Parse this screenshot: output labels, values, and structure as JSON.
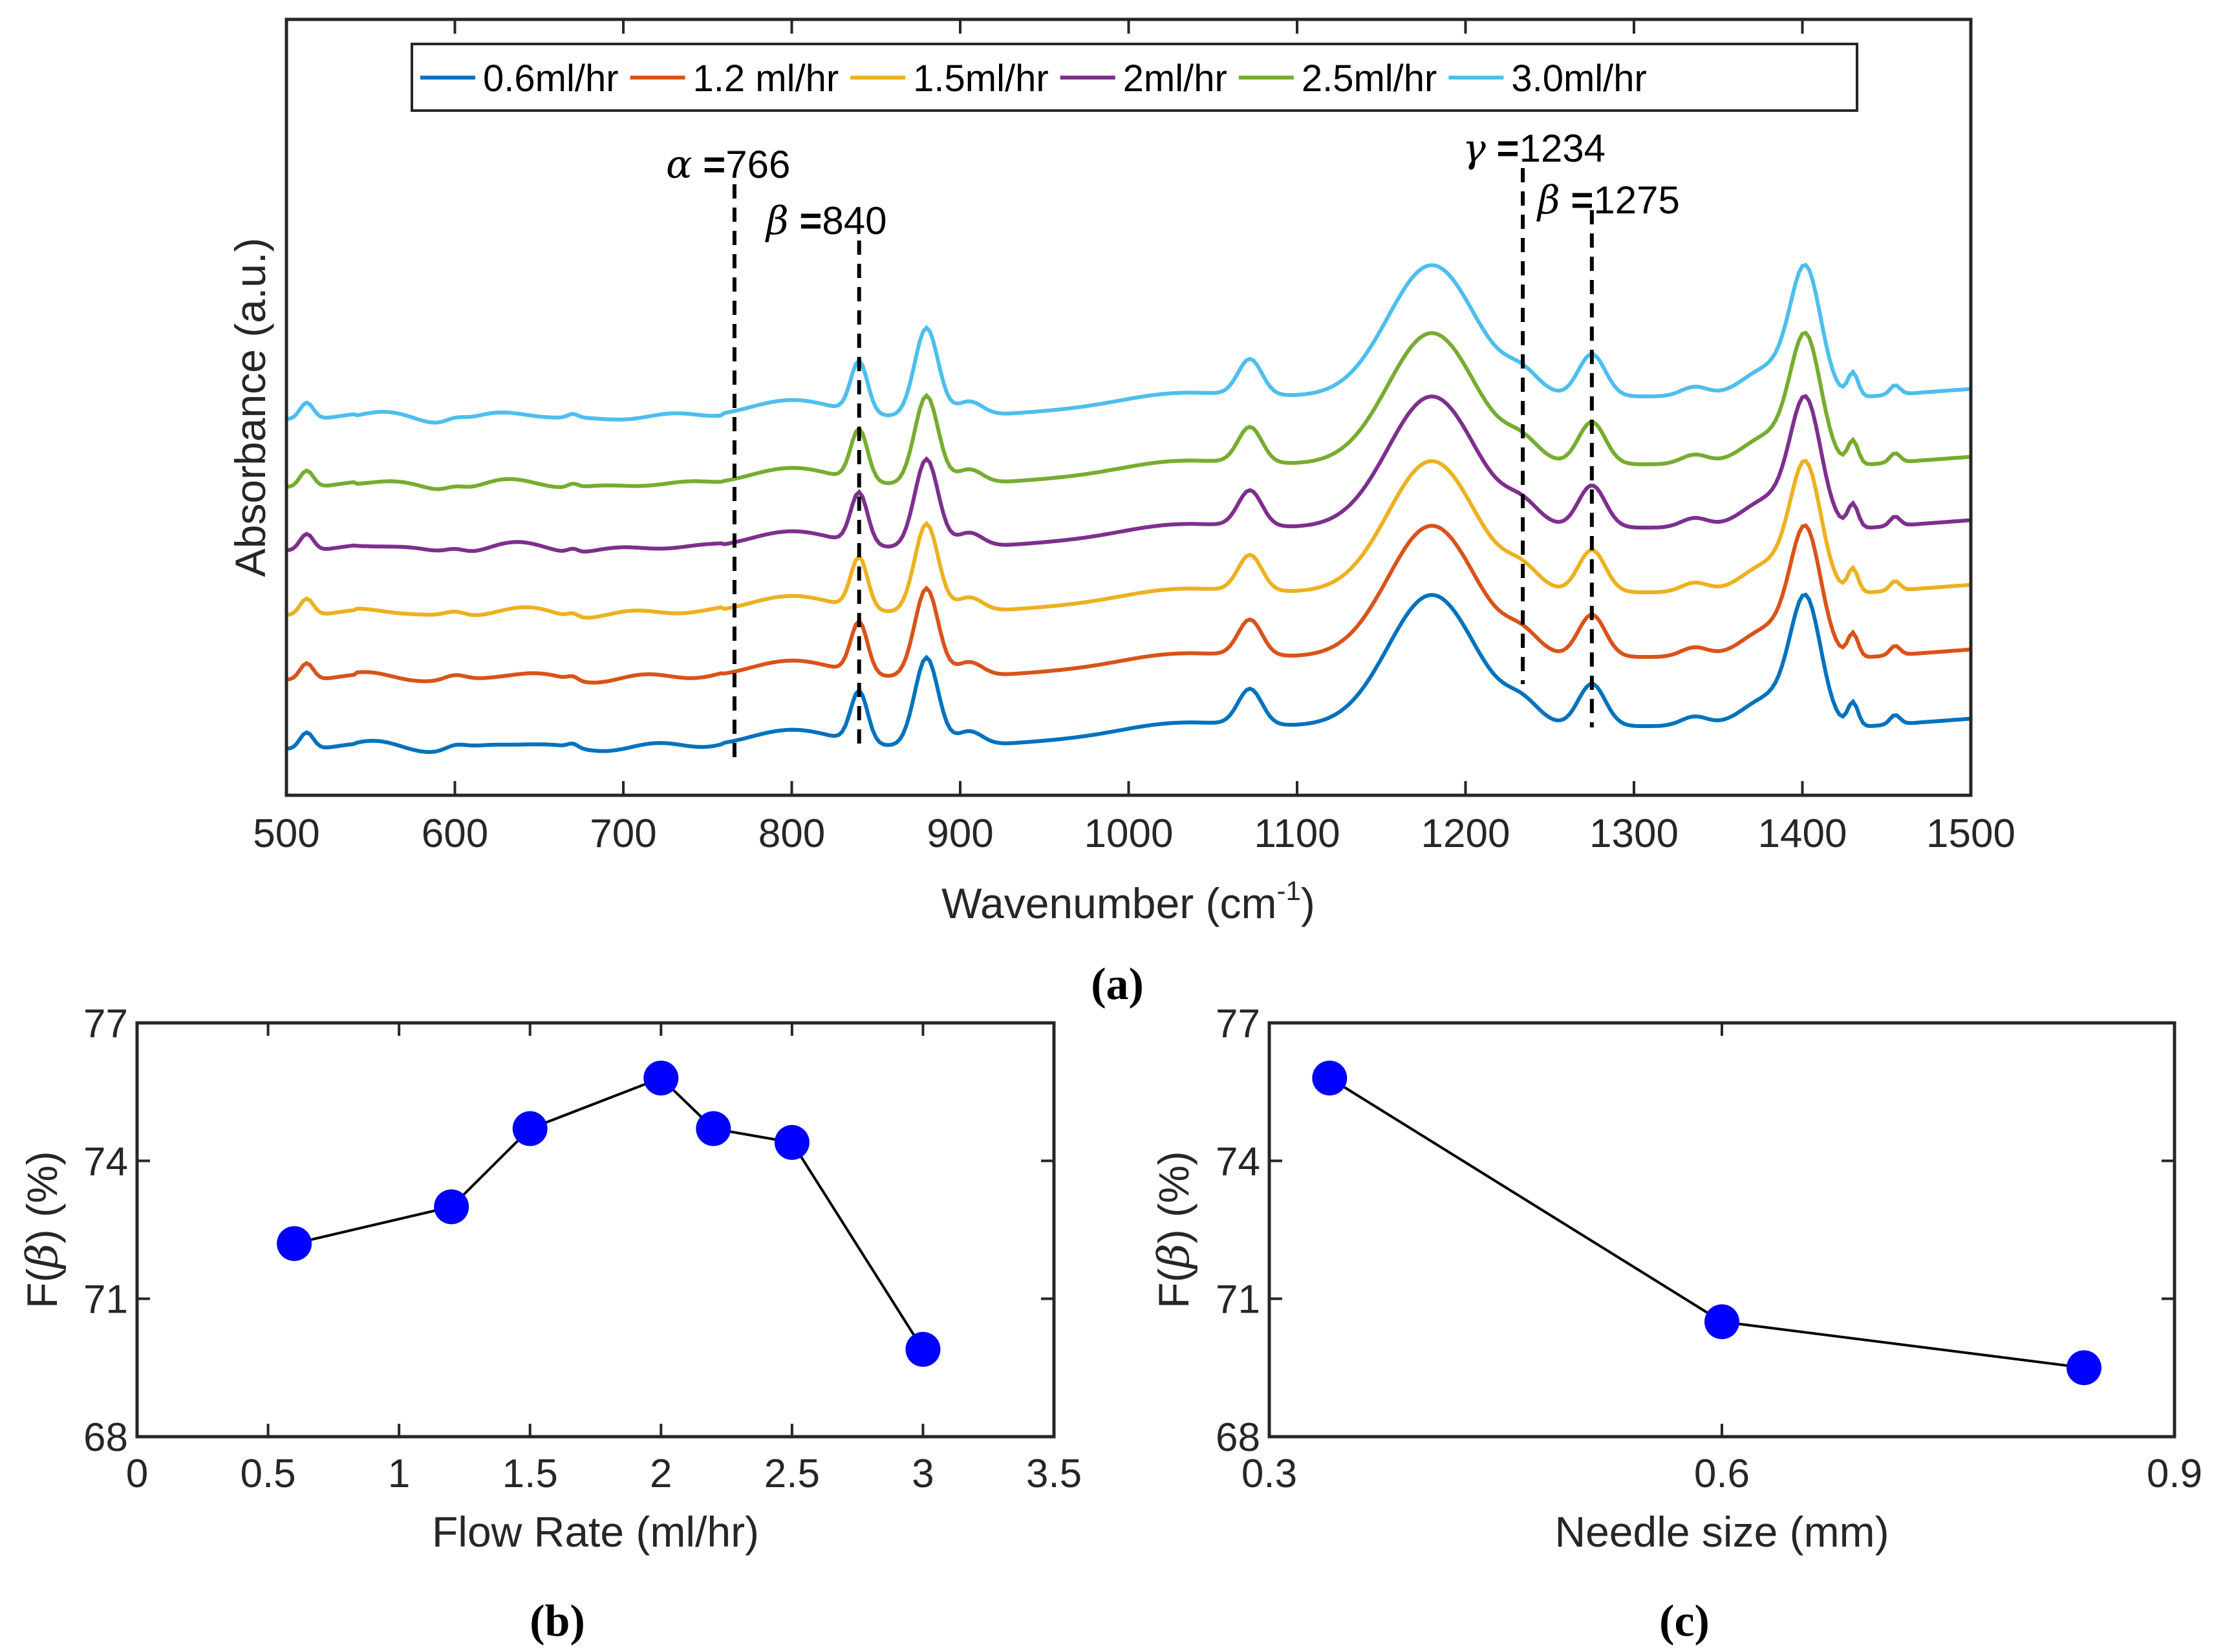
{
  "chart_data": [
    {
      "panel": "(a)",
      "type": "line",
      "xlabel": "Wavenumber (cm",
      "xlabel_sup": "-1",
      "xlabel_end": ")",
      "ylabel": "Absorbance (a.u.)",
      "xlim": [
        500,
        1500
      ],
      "xticks": [
        "500",
        "600",
        "700",
        "800",
        "900",
        "1000",
        "1100",
        "1200",
        "1300",
        "1400",
        "1500"
      ],
      "legend_position": "top",
      "series": [
        {
          "name": "0.6ml/hr",
          "color": "#0072BD"
        },
        {
          "name": "1.2 ml/hr",
          "color": "#D95319"
        },
        {
          "name": "1.5ml/hr",
          "color": "#EDB120"
        },
        {
          "name": "2ml/hr",
          "color": "#7E2F8E"
        },
        {
          "name": "2.5ml/hr",
          "color": "#77AC30"
        },
        {
          "name": "3.0ml/hr",
          "color": "#4DBEEE"
        }
      ],
      "annotations": [
        {
          "greek": "α",
          "sep": " =",
          "value": "766",
          "x": 766
        },
        {
          "greek": "β",
          "sep": " =",
          "value": "840",
          "x": 840
        },
        {
          "greek": "γ",
          "sep": " =",
          "value": "1234",
          "x": 1234
        },
        {
          "greek": "β",
          "sep": " =",
          "value": "1275",
          "x": 1275
        }
      ]
    },
    {
      "panel": "(b)",
      "type": "line",
      "xlabel": "Flow Rate (ml/hr)",
      "ylabel_pre": "F(",
      "ylabel_greek": "β",
      "ylabel_post": ") (%)",
      "xlim": [
        0,
        3.5
      ],
      "ylim": [
        68,
        77
      ],
      "xticks": [
        "0",
        "0.5",
        "1",
        "1.5",
        "2",
        "2.5",
        "3",
        "3.5"
      ],
      "yticks": [
        "68",
        "71",
        "74",
        "77"
      ],
      "x": [
        0.6,
        1.2,
        1.5,
        2.0,
        2.2,
        2.5,
        3.0
      ],
      "y": [
        72.2,
        73.0,
        74.7,
        75.8,
        74.7,
        74.4,
        69.9
      ],
      "marker_color": "#0000FF"
    },
    {
      "panel": "(c)",
      "type": "line",
      "xlabel": "Needle size (mm)",
      "ylabel_pre": "F(",
      "ylabel_greek": "β",
      "ylabel_post": ") (%)",
      "xlim": [
        0.3,
        0.9
      ],
      "ylim": [
        68,
        77
      ],
      "xticks": [
        "0.3",
        "0.6",
        "0.9"
      ],
      "yticks": [
        "68",
        "71",
        "74",
        "77"
      ],
      "x": [
        0.34,
        0.6,
        0.84
      ],
      "y": [
        75.8,
        70.5,
        69.5
      ],
      "marker_color": "#0000FF"
    }
  ]
}
